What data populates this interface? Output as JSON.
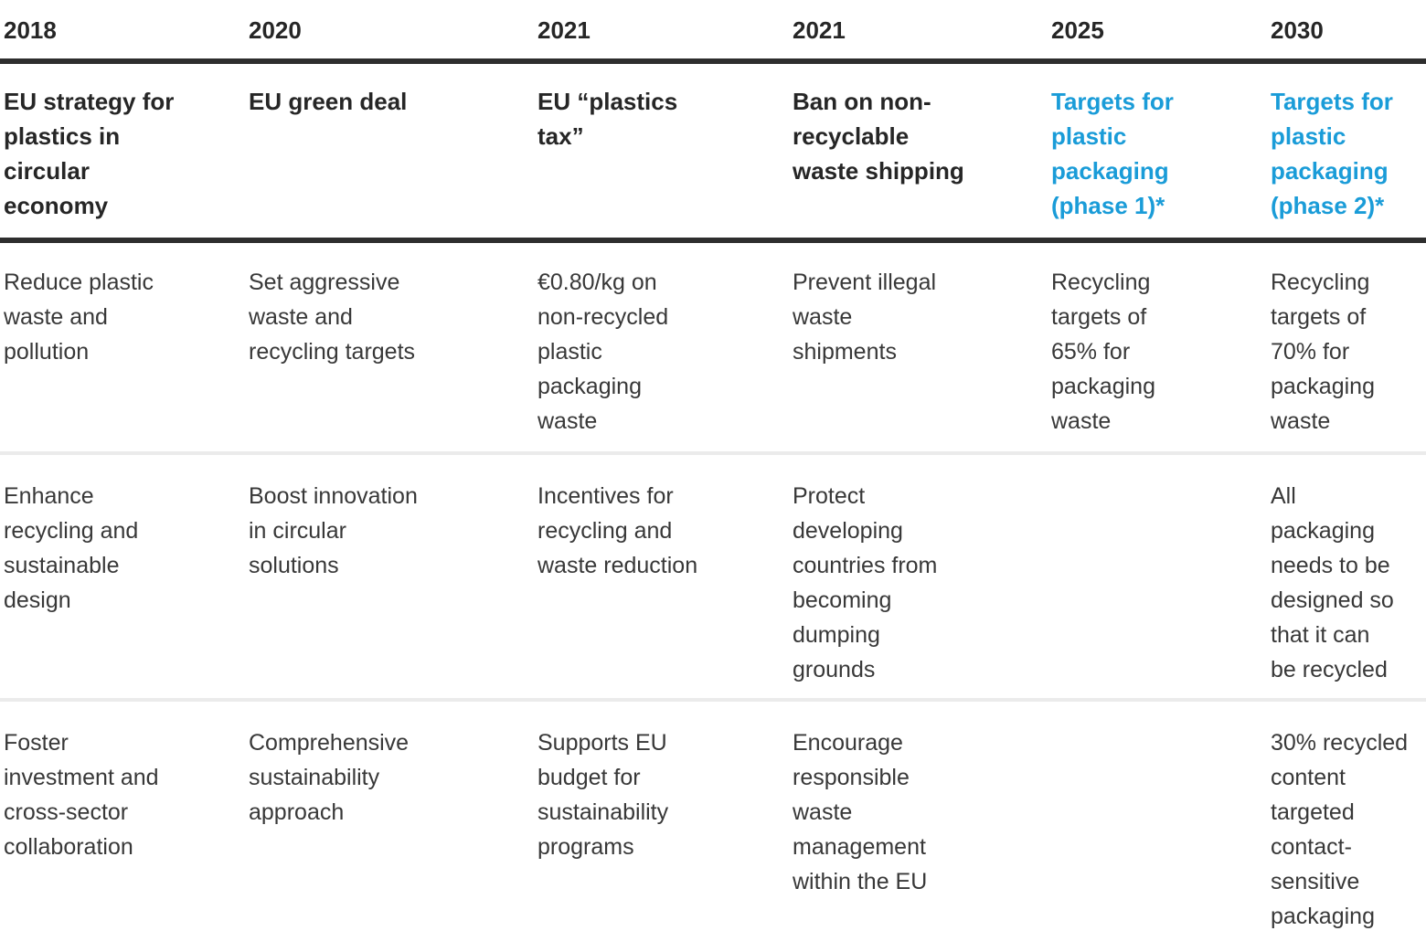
{
  "colors": {
    "accent": "#1a9cd8",
    "heading": "#262626",
    "body_text": "#383838",
    "rule_dark": "#2e2e2e",
    "rule_light": "#ebebeb"
  },
  "table": {
    "columns": [
      {
        "year": "2018",
        "title": "EU strategy for\nplastics in\ncircular\neconomy",
        "highlight": false,
        "rows": [
          "Reduce plastic\nwaste and\npollution",
          "Enhance\nrecycling and\nsustainable\ndesign",
          "Foster\ninvestment and\ncross-sector\ncollaboration"
        ]
      },
      {
        "year": "2020",
        "title": "EU green deal",
        "highlight": false,
        "rows": [
          "Set aggressive\nwaste and\nrecycling targets",
          "Boost innovation\nin circular\nsolutions",
          "Comprehensive\nsustainability\napproach"
        ]
      },
      {
        "year": "2021",
        "title": "EU “plastics\ntax”",
        "highlight": false,
        "rows": [
          "€0.80/kg on\nnon-recycled\nplastic\npackaging\nwaste",
          "Incentives for\nrecycling and\nwaste reduction",
          "Supports EU\nbudget for\nsustainability\nprograms"
        ]
      },
      {
        "year": "2021",
        "title": "Ban on non-\nrecyclable\nwaste shipping",
        "highlight": false,
        "rows": [
          "Prevent illegal\nwaste\nshipments",
          "Protect\ndeveloping\ncountries from\nbecoming\ndumping\ngrounds",
          "Encourage\nresponsible\nwaste\nmanagement\nwithin the EU"
        ]
      },
      {
        "year": "2025",
        "title": "Targets for\nplastic\npackaging\n(phase 1)*",
        "highlight": true,
        "rows": [
          "Recycling\ntargets of\n65% for\npackaging\nwaste",
          "",
          ""
        ]
      },
      {
        "year": "2030",
        "title": "Targets for\nplastic\npackaging\n(phase 2)*",
        "highlight": true,
        "rows": [
          "Recycling\ntargets of\n70% for\npackaging\nwaste",
          "All\npackaging\nneeds to be\ndesigned so\nthat it can\nbe recycled",
          "30% recycled\ncontent\ntargeted\ncontact-\nsensitive\npackaging"
        ]
      }
    ]
  }
}
